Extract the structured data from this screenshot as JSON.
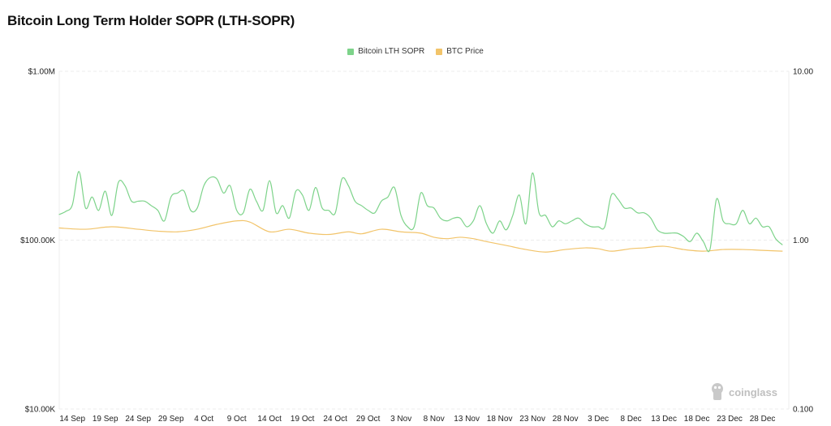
{
  "chart_data": {
    "type": "line",
    "title": "Bitcoin Long Term Holder SOPR (LTH-SOPR)",
    "colors": {
      "sopr": "#7dd38a",
      "price": "#f2c46a"
    },
    "y_left": {
      "scale": "log",
      "range": [
        10000,
        1000000
      ],
      "tick_values": [
        1000000,
        100000,
        10000
      ],
      "tick_labels": [
        "$1.00M",
        "$100.00K",
        "$10.00K"
      ]
    },
    "y_right": {
      "scale": "log",
      "range": [
        0.1,
        10
      ],
      "tick_values": [
        10,
        1,
        0.1
      ],
      "tick_labels": [
        "10.00",
        "1.00",
        "0.100"
      ]
    },
    "x_range": [
      "2024-09-12",
      "2025-01-01"
    ],
    "x_ticks": [
      {
        "date": "2024-09-14",
        "label": "14 Sep"
      },
      {
        "date": "2024-09-19",
        "label": "19 Sep"
      },
      {
        "date": "2024-09-24",
        "label": "24 Sep"
      },
      {
        "date": "2024-09-29",
        "label": "29 Sep"
      },
      {
        "date": "2024-10-04",
        "label": "4 Oct"
      },
      {
        "date": "2024-10-09",
        "label": "9 Oct"
      },
      {
        "date": "2024-10-14",
        "label": "14 Oct"
      },
      {
        "date": "2024-10-19",
        "label": "19 Oct"
      },
      {
        "date": "2024-10-24",
        "label": "24 Oct"
      },
      {
        "date": "2024-10-29",
        "label": "29 Oct"
      },
      {
        "date": "2024-11-03",
        "label": "3 Nov"
      },
      {
        "date": "2024-11-08",
        "label": "8 Nov"
      },
      {
        "date": "2024-11-13",
        "label": "13 Nov"
      },
      {
        "date": "2024-11-18",
        "label": "18 Nov"
      },
      {
        "date": "2024-11-23",
        "label": "23 Nov"
      },
      {
        "date": "2024-11-28",
        "label": "28 Nov"
      },
      {
        "date": "2024-12-03",
        "label": "3 Dec"
      },
      {
        "date": "2024-12-08",
        "label": "8 Dec"
      },
      {
        "date": "2024-12-13",
        "label": "13 Dec"
      },
      {
        "date": "2024-12-18",
        "label": "18 Dec"
      },
      {
        "date": "2024-12-23",
        "label": "23 Dec"
      },
      {
        "date": "2024-12-28",
        "label": "28 Dec"
      }
    ],
    "grid": "horizontal-dashed",
    "legend_position": "top-center",
    "series": [
      {
        "name": "Bitcoin LTH SOPR",
        "axis": "right",
        "color": "#7dd38a",
        "points": [
          [
            "2024-09-12",
            1.42
          ],
          [
            "2024-09-13",
            1.48
          ],
          [
            "2024-09-14",
            1.62
          ],
          [
            "2024-09-15",
            2.55
          ],
          [
            "2024-09-16",
            1.55
          ],
          [
            "2024-09-17",
            1.8
          ],
          [
            "2024-09-18",
            1.5
          ],
          [
            "2024-09-19",
            1.95
          ],
          [
            "2024-09-20",
            1.4
          ],
          [
            "2024-09-21",
            2.2
          ],
          [
            "2024-09-22",
            2.1
          ],
          [
            "2024-09-23",
            1.7
          ],
          [
            "2024-09-24",
            1.7
          ],
          [
            "2024-09-25",
            1.7
          ],
          [
            "2024-09-26",
            1.6
          ],
          [
            "2024-09-27",
            1.5
          ],
          [
            "2024-09-28",
            1.3
          ],
          [
            "2024-09-29",
            1.8
          ],
          [
            "2024-09-30",
            1.9
          ],
          [
            "2024-10-01",
            1.95
          ],
          [
            "2024-10-02",
            1.5
          ],
          [
            "2024-10-03",
            1.55
          ],
          [
            "2024-10-04",
            2.1
          ],
          [
            "2024-10-05",
            2.35
          ],
          [
            "2024-10-06",
            2.3
          ],
          [
            "2024-10-07",
            1.9
          ],
          [
            "2024-10-08",
            2.1
          ],
          [
            "2024-10-09",
            1.5
          ],
          [
            "2024-10-10",
            1.45
          ],
          [
            "2024-10-11",
            2.0
          ],
          [
            "2024-10-12",
            1.7
          ],
          [
            "2024-10-13",
            1.5
          ],
          [
            "2024-10-14",
            2.25
          ],
          [
            "2024-10-15",
            1.45
          ],
          [
            "2024-10-16",
            1.6
          ],
          [
            "2024-10-17",
            1.35
          ],
          [
            "2024-10-18",
            1.95
          ],
          [
            "2024-10-19",
            1.85
          ],
          [
            "2024-10-20",
            1.5
          ],
          [
            "2024-10-21",
            2.05
          ],
          [
            "2024-10-22",
            1.55
          ],
          [
            "2024-10-23",
            1.5
          ],
          [
            "2024-10-24",
            1.45
          ],
          [
            "2024-10-25",
            2.3
          ],
          [
            "2024-10-26",
            2.1
          ],
          [
            "2024-10-27",
            1.7
          ],
          [
            "2024-10-28",
            1.6
          ],
          [
            "2024-10-29",
            1.5
          ],
          [
            "2024-10-30",
            1.45
          ],
          [
            "2024-10-31",
            1.7
          ],
          [
            "2024-11-01",
            1.8
          ],
          [
            "2024-11-02",
            2.05
          ],
          [
            "2024-11-03",
            1.4
          ],
          [
            "2024-11-04",
            1.2
          ],
          [
            "2024-11-05",
            1.2
          ],
          [
            "2024-11-06",
            1.9
          ],
          [
            "2024-11-07",
            1.6
          ],
          [
            "2024-11-08",
            1.55
          ],
          [
            "2024-11-09",
            1.35
          ],
          [
            "2024-11-10",
            1.3
          ],
          [
            "2024-11-11",
            1.35
          ],
          [
            "2024-11-12",
            1.35
          ],
          [
            "2024-11-13",
            1.2
          ],
          [
            "2024-11-14",
            1.3
          ],
          [
            "2024-11-15",
            1.6
          ],
          [
            "2024-11-16",
            1.25
          ],
          [
            "2024-11-17",
            1.1
          ],
          [
            "2024-11-18",
            1.3
          ],
          [
            "2024-11-19",
            1.15
          ],
          [
            "2024-11-20",
            1.4
          ],
          [
            "2024-11-21",
            1.85
          ],
          [
            "2024-11-22",
            1.25
          ],
          [
            "2024-11-23",
            2.5
          ],
          [
            "2024-11-24",
            1.45
          ],
          [
            "2024-11-25",
            1.4
          ],
          [
            "2024-11-26",
            1.2
          ],
          [
            "2024-11-27",
            1.3
          ],
          [
            "2024-11-28",
            1.25
          ],
          [
            "2024-11-29",
            1.3
          ],
          [
            "2024-11-30",
            1.35
          ],
          [
            "2024-12-01",
            1.25
          ],
          [
            "2024-12-02",
            1.2
          ],
          [
            "2024-12-03",
            1.2
          ],
          [
            "2024-12-04",
            1.2
          ],
          [
            "2024-12-05",
            1.85
          ],
          [
            "2024-12-06",
            1.75
          ],
          [
            "2024-12-07",
            1.55
          ],
          [
            "2024-12-08",
            1.55
          ],
          [
            "2024-12-09",
            1.45
          ],
          [
            "2024-12-10",
            1.45
          ],
          [
            "2024-12-11",
            1.35
          ],
          [
            "2024-12-12",
            1.15
          ],
          [
            "2024-12-13",
            1.1
          ],
          [
            "2024-12-14",
            1.1
          ],
          [
            "2024-12-15",
            1.1
          ],
          [
            "2024-12-16",
            1.05
          ],
          [
            "2024-12-17",
            0.98
          ],
          [
            "2024-12-18",
            1.1
          ],
          [
            "2024-12-19",
            0.98
          ],
          [
            "2024-12-20",
            0.88
          ],
          [
            "2024-12-21",
            1.75
          ],
          [
            "2024-12-22",
            1.3
          ],
          [
            "2024-12-23",
            1.25
          ],
          [
            "2024-12-24",
            1.25
          ],
          [
            "2024-12-25",
            1.5
          ],
          [
            "2024-12-26",
            1.25
          ],
          [
            "2024-12-27",
            1.35
          ],
          [
            "2024-12-28",
            1.2
          ],
          [
            "2024-12-29",
            1.2
          ],
          [
            "2024-12-30",
            1.02
          ],
          [
            "2024-12-31",
            0.94
          ]
        ]
      },
      {
        "name": "BTC Price",
        "axis": "left",
        "color": "#f2c46a",
        "points": [
          [
            "2024-09-12",
            118000
          ],
          [
            "2024-09-16",
            116000
          ],
          [
            "2024-09-20",
            120000
          ],
          [
            "2024-09-24",
            116000
          ],
          [
            "2024-09-27",
            113000
          ],
          [
            "2024-09-30",
            112000
          ],
          [
            "2024-10-03",
            116000
          ],
          [
            "2024-10-06",
            124000
          ],
          [
            "2024-10-09",
            130000
          ],
          [
            "2024-10-11",
            128000
          ],
          [
            "2024-10-14",
            112000
          ],
          [
            "2024-10-17",
            116000
          ],
          [
            "2024-10-20",
            110000
          ],
          [
            "2024-10-23",
            108000
          ],
          [
            "2024-10-26",
            112000
          ],
          [
            "2024-10-28",
            109000
          ],
          [
            "2024-10-31",
            116000
          ],
          [
            "2024-11-03",
            112000
          ],
          [
            "2024-11-06",
            110000
          ],
          [
            "2024-11-08",
            104000
          ],
          [
            "2024-11-10",
            102000
          ],
          [
            "2024-11-12",
            104000
          ],
          [
            "2024-11-14",
            102000
          ],
          [
            "2024-11-16",
            98000
          ],
          [
            "2024-11-19",
            93000
          ],
          [
            "2024-11-22",
            88000
          ],
          [
            "2024-11-25",
            85000
          ],
          [
            "2024-11-28",
            88000
          ],
          [
            "2024-12-01",
            90000
          ],
          [
            "2024-12-03",
            89000
          ],
          [
            "2024-12-05",
            86000
          ],
          [
            "2024-12-08",
            89000
          ],
          [
            "2024-12-10",
            90000
          ],
          [
            "2024-12-13",
            92000
          ],
          [
            "2024-12-16",
            88000
          ],
          [
            "2024-12-19",
            86000
          ],
          [
            "2024-12-22",
            88000
          ],
          [
            "2024-12-25",
            88000
          ],
          [
            "2024-12-28",
            87000
          ],
          [
            "2024-12-31",
            86000
          ]
        ]
      }
    ],
    "watermark": "coinglass"
  }
}
